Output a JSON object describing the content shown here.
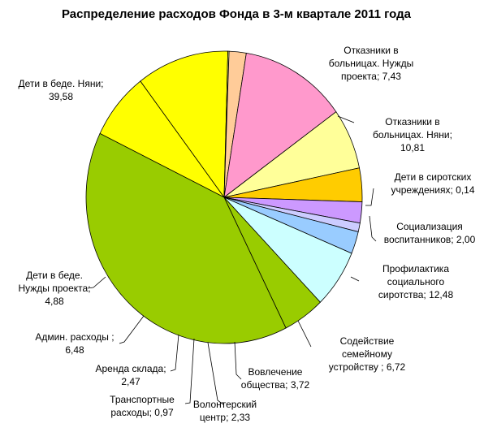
{
  "chart_data": {
    "type": "pie",
    "title": "Распределение расходов Фонда в 3-м квартале 2011 года",
    "slices": [
      {
        "label": "Отказники в больницах. Нужды проекта",
        "value": 7.43,
        "display": "7,43",
        "label_lines": [
          "Отказники в",
          "больницах. Нужды",
          "проекта; 7,43"
        ],
        "color": "#ffff00"
      },
      {
        "label": "Отказники в больницах. Няни",
        "value": 10.81,
        "display": "10,81",
        "label_lines": [
          "Отказники в",
          "больницах. Няни;",
          "10,81"
        ],
        "color": "#ffff00"
      },
      {
        "label": "Дети в сиротских учреждениях",
        "value": 0.14,
        "display": "0,14",
        "label_lines": [
          "Дети в сиротских",
          "учреждениях; 0,14"
        ],
        "color": "#ffff99"
      },
      {
        "label": "Социализация воспитанников",
        "value": 2.0,
        "display": "2,00",
        "label_lines": [
          "Социализация",
          "воспитанников; 2,00"
        ],
        "color": "#ffcc99"
      },
      {
        "label": "Профилактика социального сиротства",
        "value": 12.48,
        "display": "12,48",
        "label_lines": [
          "Профилактика",
          "социального",
          "сиротства; 12,48"
        ],
        "color": "#ff99cc"
      },
      {
        "label": "Содействие семейному устройству",
        "value": 6.72,
        "display": "6,72",
        "label_lines": [
          "Содействие",
          "семейному",
          "устройству ; 6,72"
        ],
        "color": "#ffff99"
      },
      {
        "label": "Вовлечение общества",
        "value": 3.72,
        "display": "3,72",
        "label_lines": [
          "Вовлечение",
          "общества; 3,72"
        ],
        "color": "#ffcc00"
      },
      {
        "label": "Волонтерский центр",
        "value": 2.33,
        "display": "2,33",
        "label_lines": [
          "Волонтерский",
          "центр; 2,33"
        ],
        "color": "#cc99ff"
      },
      {
        "label": "Транспортные расходы",
        "value": 0.97,
        "display": "0,97",
        "label_lines": [
          "Транспортные",
          "расходы; 0,97"
        ],
        "color": "#ccccff"
      },
      {
        "label": "Аренда склада",
        "value": 2.47,
        "display": "2,47",
        "label_lines": [
          "Аренда склада;",
          "2,47"
        ],
        "color": "#99ccff"
      },
      {
        "label": "Админ. расходы",
        "value": 6.48,
        "display": "6,48",
        "label_lines": [
          "Админ. расходы ;",
          "6,48"
        ],
        "color": "#ccffff"
      },
      {
        "label": "Дети в беде. Нужды проекта",
        "value": 4.88,
        "display": "4,88",
        "label_lines": [
          "Дети в беде.",
          "Нужды проекта;",
          "4,88"
        ],
        "color": "#99cc00"
      },
      {
        "label": "Дети в беде. Няни",
        "value": 39.58,
        "display": "39,58",
        "label_lines": [
          "Дети в беде. Няни;",
          "39,58"
        ],
        "color": "#99cc00"
      }
    ]
  }
}
